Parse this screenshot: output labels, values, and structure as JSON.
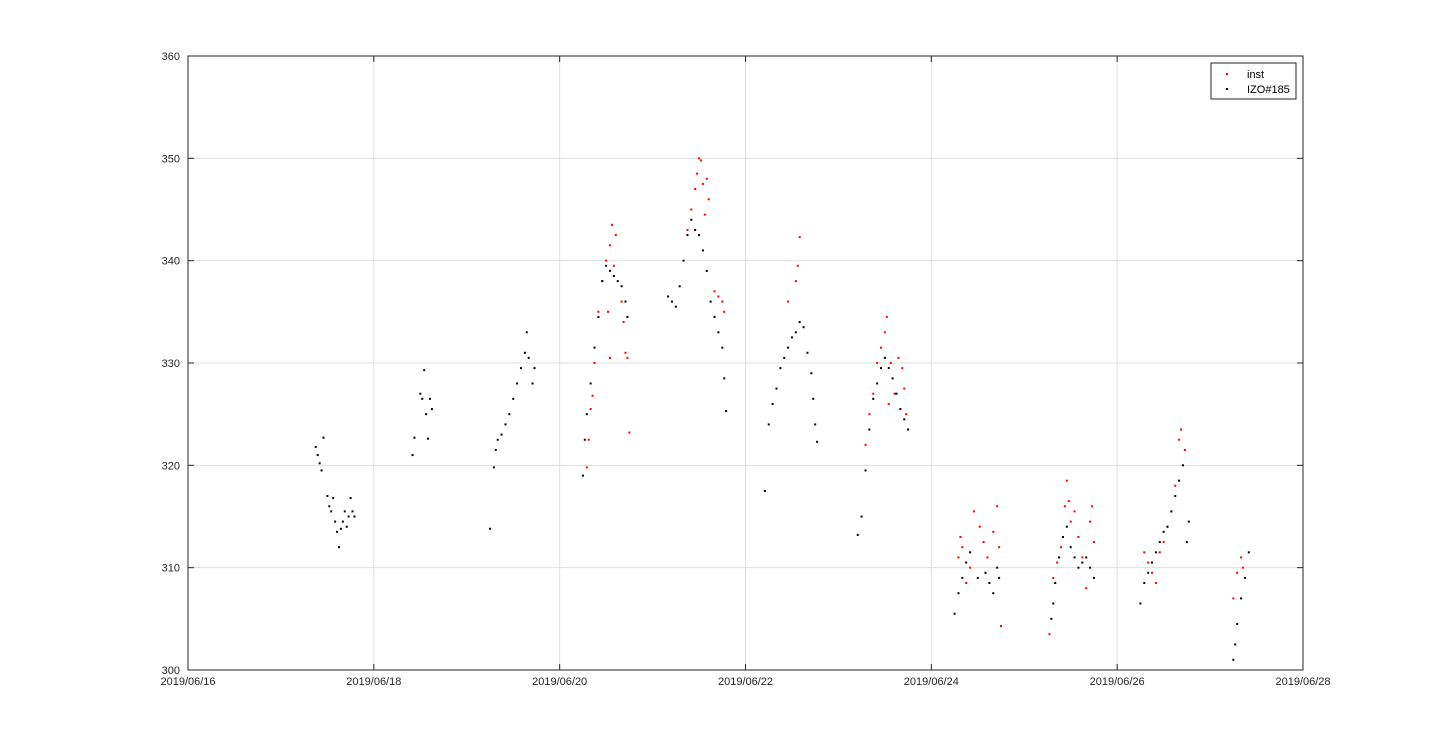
{
  "chart_data": {
    "type": "scatter",
    "title": "",
    "xlabel": "",
    "ylabel": "",
    "xlim": [
      "2019/06/16",
      "2019/06/28"
    ],
    "ylim": [
      300,
      360
    ],
    "xticks": [
      "2019/06/16",
      "2019/06/18",
      "2019/06/20",
      "2019/06/22",
      "2019/06/24",
      "2019/06/26",
      "2019/06/28"
    ],
    "yticks": [
      300,
      310,
      320,
      330,
      340,
      350,
      360
    ],
    "grid": true,
    "legend_location": "top-right",
    "series": [
      {
        "name": "inst",
        "color": "#ff0000",
        "points": [
          [
            "2019/06/20 07:00",
            319.8
          ],
          [
            "2019/06/20 07:30",
            322.5
          ],
          [
            "2019/06/20 08:00",
            325.5
          ],
          [
            "2019/06/20 08:30",
            326.8
          ],
          [
            "2019/06/20 09:00",
            330.0
          ],
          [
            "2019/06/20 10:00",
            335.0
          ],
          [
            "2019/06/20 11:00",
            338.0
          ],
          [
            "2019/06/20 12:00",
            340.0
          ],
          [
            "2019/06/20 13:00",
            341.5
          ],
          [
            "2019/06/20 13:30",
            343.5
          ],
          [
            "2019/06/20 14:00",
            339.5
          ],
          [
            "2019/06/20 14:30",
            342.5
          ],
          [
            "2019/06/20 13:00",
            330.5
          ],
          [
            "2019/06/20 16:00",
            336.0
          ],
          [
            "2019/06/20 16:30",
            334.0
          ],
          [
            "2019/06/20 17:00",
            331.0
          ],
          [
            "2019/06/20 17:30",
            330.5
          ],
          [
            "2019/06/20 18:00",
            323.2
          ],
          [
            "2019/06/20 12:30",
            335.0
          ],
          [
            "2019/06/21 09:00",
            343.0
          ],
          [
            "2019/06/21 10:00",
            345.0
          ],
          [
            "2019/06/21 11:00",
            347.0
          ],
          [
            "2019/06/21 11:30",
            348.5
          ],
          [
            "2019/06/21 12:00",
            350.0
          ],
          [
            "2019/06/21 12:30",
            349.8
          ],
          [
            "2019/06/21 13:00",
            347.5
          ],
          [
            "2019/06/21 14:00",
            348.0
          ],
          [
            "2019/06/21 14:30",
            346.0
          ],
          [
            "2019/06/21 13:30",
            344.5
          ],
          [
            "2019/06/21 16:00",
            337.0
          ],
          [
            "2019/06/21 17:00",
            336.5
          ],
          [
            "2019/06/21 18:00",
            336.0
          ],
          [
            "2019/06/21 18:30",
            335.0
          ],
          [
            "2019/06/22 11:00",
            336.0
          ],
          [
            "2019/06/22 13:00",
            338.0
          ],
          [
            "2019/06/22 13:30",
            339.5
          ],
          [
            "2019/06/22 14:00",
            342.3
          ],
          [
            "2019/06/23 07:00",
            322.0
          ],
          [
            "2019/06/23 08:00",
            325.0
          ],
          [
            "2019/06/23 09:00",
            327.0
          ],
          [
            "2019/06/23 10:00",
            330.0
          ],
          [
            "2019/06/23 11:00",
            331.5
          ],
          [
            "2019/06/23 12:00",
            333.0
          ],
          [
            "2019/06/23 12:30",
            334.5
          ],
          [
            "2019/06/23 13:30",
            330.0
          ],
          [
            "2019/06/23 14:30",
            327.0
          ],
          [
            "2019/06/23 15:30",
            330.5
          ],
          [
            "2019/06/23 16:30",
            329.5
          ],
          [
            "2019/06/23 17:00",
            327.5
          ],
          [
            "2019/06/23 17:30",
            325.0
          ],
          [
            "2019/06/23 13:00",
            326.0
          ],
          [
            "2019/06/24 07:00",
            311.0
          ],
          [
            "2019/06/24 07:30",
            313.0
          ],
          [
            "2019/06/24 08:00",
            312.0
          ],
          [
            "2019/06/24 09:00",
            308.5
          ],
          [
            "2019/06/24 10:00",
            310.0
          ],
          [
            "2019/06/24 11:00",
            315.5
          ],
          [
            "2019/06/24 12:30",
            314.0
          ],
          [
            "2019/06/24 13:30",
            312.5
          ],
          [
            "2019/06/24 14:30",
            311.0
          ],
          [
            "2019/06/24 16:00",
            313.5
          ],
          [
            "2019/06/24 17:00",
            316.0
          ],
          [
            "2019/06/24 18:00",
            304.3
          ],
          [
            "2019/06/24 17:30",
            312.0
          ],
          [
            "2019/06/25 06:30",
            303.5
          ],
          [
            "2019/06/25 07:30",
            309.0
          ],
          [
            "2019/06/25 08:30",
            310.5
          ],
          [
            "2019/06/25 09:30",
            312.0
          ],
          [
            "2019/06/25 10:30",
            316.0
          ],
          [
            "2019/06/25 11:00",
            318.5
          ],
          [
            "2019/06/25 11:30",
            316.5
          ],
          [
            "2019/06/25 12:00",
            314.5
          ],
          [
            "2019/06/25 13:00",
            315.5
          ],
          [
            "2019/06/25 14:00",
            313.0
          ],
          [
            "2019/06/25 15:00",
            311.0
          ],
          [
            "2019/06/25 16:00",
            308.0
          ],
          [
            "2019/06/25 17:00",
            314.5
          ],
          [
            "2019/06/25 17:30",
            316.0
          ],
          [
            "2019/06/25 18:00",
            312.5
          ],
          [
            "2019/06/26 07:00",
            311.5
          ],
          [
            "2019/06/26 08:00",
            310.5
          ],
          [
            "2019/06/26 09:00",
            309.5
          ],
          [
            "2019/06/26 10:00",
            308.5
          ],
          [
            "2019/06/26 11:00",
            311.5
          ],
          [
            "2019/06/26 12:00",
            312.5
          ],
          [
            "2019/06/26 13:00",
            314.0
          ],
          [
            "2019/06/26 14:00",
            315.5
          ],
          [
            "2019/06/26 15:00",
            318.0
          ],
          [
            "2019/06/26 16:00",
            322.5
          ],
          [
            "2019/06/26 16:30",
            323.5
          ],
          [
            "2019/06/26 17:30",
            321.5
          ],
          [
            "2019/06/27 06:00",
            307.0
          ],
          [
            "2019/06/27 07:00",
            309.5
          ],
          [
            "2019/06/27 08:00",
            311.0
          ],
          [
            "2019/06/27 08:30",
            310.0
          ]
        ]
      },
      {
        "name": "IZO#185",
        "color": "#000000",
        "points": [
          [
            "2019/06/17 09:00",
            321.8
          ],
          [
            "2019/06/17 09:30",
            321.0
          ],
          [
            "2019/06/17 10:00",
            320.2
          ],
          [
            "2019/06/17 10:30",
            319.5
          ],
          [
            "2019/06/17 11:00",
            322.7
          ],
          [
            "2019/06/17 12:00",
            317.0
          ],
          [
            "2019/06/17 12:30",
            316.0
          ],
          [
            "2019/06/17 13:00",
            315.5
          ],
          [
            "2019/06/17 13:30",
            316.8
          ],
          [
            "2019/06/17 14:00",
            314.5
          ],
          [
            "2019/06/17 14:30",
            313.5
          ],
          [
            "2019/06/17 15:00",
            312.0
          ],
          [
            "2019/06/17 15:30",
            313.8
          ],
          [
            "2019/06/17 16:00",
            314.5
          ],
          [
            "2019/06/17 16:30",
            315.5
          ],
          [
            "2019/06/17 17:00",
            314.0
          ],
          [
            "2019/06/17 17:30",
            315.0
          ],
          [
            "2019/06/17 18:00",
            316.8
          ],
          [
            "2019/06/17 18:30",
            315.5
          ],
          [
            "2019/06/17 19:00",
            315.0
          ],
          [
            "2019/06/18 10:00",
            321.0
          ],
          [
            "2019/06/18 10:30",
            322.7
          ],
          [
            "2019/06/18 12:00",
            327.0
          ],
          [
            "2019/06/18 12:30",
            326.5
          ],
          [
            "2019/06/18 13:00",
            329.3
          ],
          [
            "2019/06/18 13:30",
            325.0
          ],
          [
            "2019/06/18 14:00",
            322.6
          ],
          [
            "2019/06/18 14:30",
            326.5
          ],
          [
            "2019/06/18 15:00",
            325.5
          ],
          [
            "2019/06/19 06:00",
            313.8
          ],
          [
            "2019/06/19 07:00",
            319.8
          ],
          [
            "2019/06/19 07:30",
            321.5
          ],
          [
            "2019/06/19 08:00",
            322.5
          ],
          [
            "2019/06/19 09:00",
            323.0
          ],
          [
            "2019/06/19 10:00",
            324.0
          ],
          [
            "2019/06/19 11:00",
            325.0
          ],
          [
            "2019/06/19 12:00",
            326.5
          ],
          [
            "2019/06/19 13:00",
            328.0
          ],
          [
            "2019/06/19 14:00",
            329.5
          ],
          [
            "2019/06/19 15:00",
            331.0
          ],
          [
            "2019/06/19 15:30",
            333.0
          ],
          [
            "2019/06/19 16:00",
            330.5
          ],
          [
            "2019/06/19 17:00",
            328.0
          ],
          [
            "2019/06/19 17:30",
            329.5
          ],
          [
            "2019/06/20 06:00",
            319.0
          ],
          [
            "2019/06/20 06:30",
            322.5
          ],
          [
            "2019/06/20 07:00",
            325.0
          ],
          [
            "2019/06/20 08:00",
            328.0
          ],
          [
            "2019/06/20 09:00",
            331.5
          ],
          [
            "2019/06/20 10:00",
            334.5
          ],
          [
            "2019/06/20 11:00",
            338.0
          ],
          [
            "2019/06/20 12:00",
            339.5
          ],
          [
            "2019/06/20 13:00",
            339.0
          ],
          [
            "2019/06/20 14:00",
            338.5
          ],
          [
            "2019/06/20 15:00",
            338.0
          ],
          [
            "2019/06/20 16:00",
            337.5
          ],
          [
            "2019/06/20 17:00",
            336.0
          ],
          [
            "2019/06/20 17:30",
            334.5
          ],
          [
            "2019/06/21 04:00",
            336.5
          ],
          [
            "2019/06/21 05:00",
            336.0
          ],
          [
            "2019/06/21 06:00",
            335.5
          ],
          [
            "2019/06/21 07:00",
            337.5
          ],
          [
            "2019/06/21 08:00",
            340.0
          ],
          [
            "2019/06/21 09:00",
            342.5
          ],
          [
            "2019/06/21 10:00",
            344.0
          ],
          [
            "2019/06/21 11:00",
            343.0
          ],
          [
            "2019/06/21 12:00",
            342.5
          ],
          [
            "2019/06/21 13:00",
            341.0
          ],
          [
            "2019/06/21 14:00",
            339.0
          ],
          [
            "2019/06/21 15:00",
            336.0
          ],
          [
            "2019/06/21 16:00",
            334.5
          ],
          [
            "2019/06/21 17:00",
            333.0
          ],
          [
            "2019/06/21 18:00",
            331.5
          ],
          [
            "2019/06/21 18:30",
            328.5
          ],
          [
            "2019/06/21 19:00",
            325.3
          ],
          [
            "2019/06/22 05:00",
            317.5
          ],
          [
            "2019/06/22 06:00",
            324.0
          ],
          [
            "2019/06/22 07:00",
            326.0
          ],
          [
            "2019/06/22 08:00",
            327.5
          ],
          [
            "2019/06/22 09:00",
            329.5
          ],
          [
            "2019/06/22 10:00",
            330.5
          ],
          [
            "2019/06/22 11:00",
            331.5
          ],
          [
            "2019/06/22 12:00",
            332.5
          ],
          [
            "2019/06/22 13:00",
            333.0
          ],
          [
            "2019/06/22 14:00",
            334.0
          ],
          [
            "2019/06/22 15:00",
            333.5
          ],
          [
            "2019/06/22 16:00",
            331.0
          ],
          [
            "2019/06/22 17:00",
            329.0
          ],
          [
            "2019/06/22 17:30",
            326.5
          ],
          [
            "2019/06/22 18:00",
            324.0
          ],
          [
            "2019/06/22 18:30",
            322.3
          ],
          [
            "2019/06/23 05:00",
            313.2
          ],
          [
            "2019/06/23 06:00",
            315.0
          ],
          [
            "2019/06/23 07:00",
            319.5
          ],
          [
            "2019/06/23 08:00",
            323.5
          ],
          [
            "2019/06/23 09:00",
            326.5
          ],
          [
            "2019/06/23 10:00",
            328.0
          ],
          [
            "2019/06/23 11:00",
            329.5
          ],
          [
            "2019/06/23 12:00",
            330.5
          ],
          [
            "2019/06/23 13:00",
            329.5
          ],
          [
            "2019/06/23 14:00",
            328.5
          ],
          [
            "2019/06/23 15:00",
            327.0
          ],
          [
            "2019/06/23 16:00",
            325.5
          ],
          [
            "2019/06/23 17:00",
            324.5
          ],
          [
            "2019/06/23 18:00",
            323.5
          ],
          [
            "2019/06/24 06:00",
            305.5
          ],
          [
            "2019/06/24 07:00",
            307.5
          ],
          [
            "2019/06/24 08:00",
            309.0
          ],
          [
            "2019/06/24 09:00",
            310.5
          ],
          [
            "2019/06/24 10:00",
            311.5
          ],
          [
            "2019/06/24 12:00",
            309.0
          ],
          [
            "2019/06/24 14:00",
            309.5
          ],
          [
            "2019/06/24 15:00",
            308.5
          ],
          [
            "2019/06/24 16:00",
            307.5
          ],
          [
            "2019/06/24 17:00",
            310.0
          ],
          [
            "2019/06/24 17:30",
            309.0
          ],
          [
            "2019/06/25 07:00",
            305.0
          ],
          [
            "2019/06/25 07:30",
            306.5
          ],
          [
            "2019/06/25 08:00",
            308.5
          ],
          [
            "2019/06/25 09:00",
            311.0
          ],
          [
            "2019/06/25 10:00",
            313.0
          ],
          [
            "2019/06/25 11:00",
            314.0
          ],
          [
            "2019/06/25 12:00",
            312.0
          ],
          [
            "2019/06/25 13:00",
            311.0
          ],
          [
            "2019/06/25 14:00",
            310.0
          ],
          [
            "2019/06/25 15:00",
            310.5
          ],
          [
            "2019/06/25 16:00",
            311.0
          ],
          [
            "2019/06/25 17:00",
            310.0
          ],
          [
            "2019/06/25 18:00",
            309.0
          ],
          [
            "2019/06/26 06:00",
            306.5
          ],
          [
            "2019/06/26 07:00",
            308.5
          ],
          [
            "2019/06/26 08:00",
            309.5
          ],
          [
            "2019/06/26 09:00",
            310.5
          ],
          [
            "2019/06/26 10:00",
            311.5
          ],
          [
            "2019/06/26 11:00",
            312.5
          ],
          [
            "2019/06/26 12:00",
            313.5
          ],
          [
            "2019/06/26 13:00",
            314.0
          ],
          [
            "2019/06/26 14:00",
            315.5
          ],
          [
            "2019/06/26 15:00",
            317.0
          ],
          [
            "2019/06/26 16:00",
            318.5
          ],
          [
            "2019/06/26 17:00",
            320.0
          ],
          [
            "2019/06/26 18:00",
            312.5
          ],
          [
            "2019/06/26 18:30",
            314.5
          ],
          [
            "2019/06/27 06:00",
            301.0
          ],
          [
            "2019/06/27 06:30",
            302.5
          ],
          [
            "2019/06/27 07:00",
            304.5
          ],
          [
            "2019/06/27 08:00",
            307.0
          ],
          [
            "2019/06/27 09:00",
            309.0
          ],
          [
            "2019/06/27 10:00",
            311.5
          ]
        ]
      }
    ]
  }
}
